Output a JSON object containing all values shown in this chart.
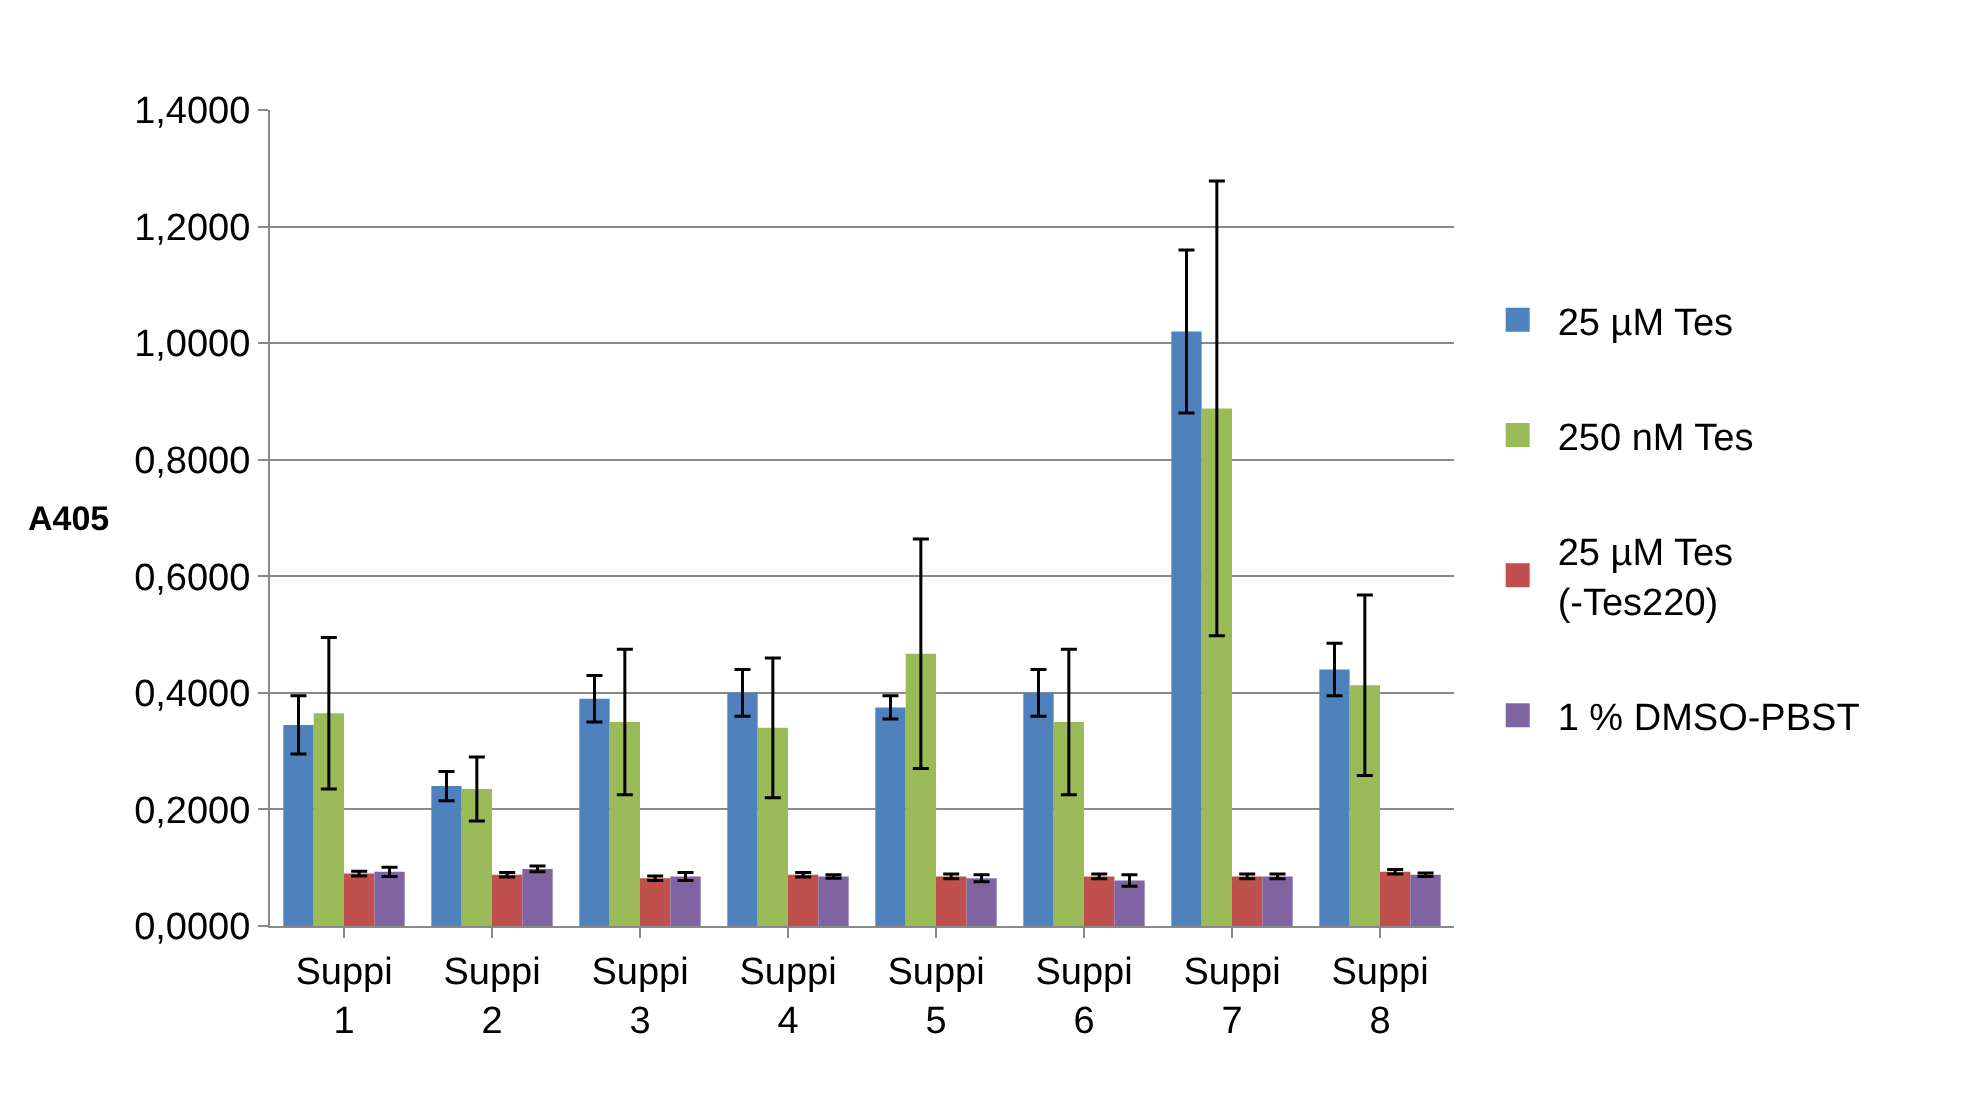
{
  "chart_data": {
    "type": "bar",
    "ylabel": "A405",
    "categories": [
      "Suppi 1",
      "Suppi 2",
      "Suppi 3",
      "Suppi 4",
      "Suppi 5",
      "Suppi 6",
      "Suppi 7",
      "Suppi 8"
    ],
    "series": [
      {
        "name": "25 µM Tes",
        "color": "#4f81bd",
        "values": [
          0.345,
          0.24,
          0.39,
          0.4,
          0.375,
          0.4,
          1.02,
          0.44
        ],
        "errors": [
          0.05,
          0.025,
          0.04,
          0.04,
          0.02,
          0.04,
          0.14,
          0.045
        ]
      },
      {
        "name": "250 nM Tes",
        "color": "#9bbb59",
        "values": [
          0.365,
          0.235,
          0.35,
          0.34,
          0.467,
          0.35,
          0.888,
          0.413
        ],
        "errors": [
          0.13,
          0.055,
          0.125,
          0.12,
          0.197,
          0.125,
          0.39,
          0.155
        ]
      },
      {
        "name": "25 µM Tes (-Tes220)",
        "color": "#c0504d",
        "values": [
          0.09,
          0.088,
          0.082,
          0.088,
          0.085,
          0.085,
          0.085,
          0.093
        ],
        "errors": [
          0.004,
          0.004,
          0.004,
          0.004,
          0.004,
          0.004,
          0.004,
          0.004
        ]
      },
      {
        "name": "1 % DMSO-PBST",
        "color": "#8064a2",
        "values": [
          0.093,
          0.098,
          0.085,
          0.085,
          0.082,
          0.078,
          0.085,
          0.088
        ],
        "errors": [
          0.008,
          0.005,
          0.007,
          0.003,
          0.006,
          0.01,
          0.004,
          0.003
        ]
      }
    ],
    "ylim": [
      0,
      1.4
    ],
    "yticks": [
      {
        "value": 0,
        "label": "0,0000"
      },
      {
        "value": 0.2,
        "label": "0,2000"
      },
      {
        "value": 0.4,
        "label": "0,4000"
      },
      {
        "value": 0.6,
        "label": "0,6000"
      },
      {
        "value": 0.8,
        "label": "0,8000"
      },
      {
        "value": 1.0,
        "label": "1,0000"
      },
      {
        "value": 1.2,
        "label": "1,2000"
      },
      {
        "value": 1.4,
        "label": "1,4000"
      }
    ],
    "grid": "y",
    "legend": "right"
  }
}
